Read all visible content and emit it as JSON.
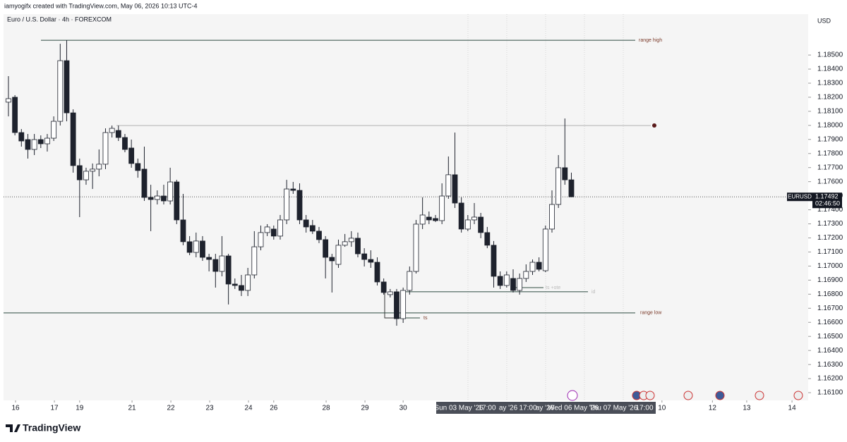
{
  "header": {
    "credit": "iamyogifx created with TradingView.com, May 06, 2026 10:13 UTC-4",
    "logo": "TradingView"
  },
  "chart_data": {
    "type": "candlestick",
    "title": "Euro / U.S. Dollar · 4h · FOREXCOM",
    "currency": "USD",
    "symbol": "EURUSD",
    "last_price": {
      "value": 1.17492,
      "label": "1.17492"
    },
    "countdown": "02:46:50",
    "colors": {
      "up": "#ffffff",
      "down": "#1e222d",
      "border": "#1e222d"
    },
    "open": [
      1.18165,
      1.182,
      1.17949,
      1.17899,
      1.17829,
      1.17899,
      1.17869,
      1.17909,
      1.18029,
      1.1846,
      1.18089,
      1.17714,
      1.17613,
      1.17674,
      1.17689,
      1.17724,
      1.17949,
      1.17964,
      1.17914,
      1.17839,
      1.17729,
      1.17689,
      1.17488,
      1.17473,
      1.17498,
      1.17463,
      1.17598,
      1.17328,
      1.17173,
      1.17097,
      1.17178,
      1.17062,
      1.17047,
      1.16962,
      1.17072,
      1.16872,
      1.16862,
      1.16827,
      1.16937,
      1.17137,
      1.17238,
      1.17263,
      1.17213,
      1.17328,
      1.17548,
      1.17538,
      1.17328,
      1.17288,
      1.17248,
      1.17188,
      1.17062,
      1.17012,
      1.17148,
      1.17173,
      1.17198,
      1.17087,
      1.17047,
      1.17027,
      1.16887,
      1.16797,
      1.16817,
      1.16626,
      1.16827,
      1.16962,
      1.17298,
      1.17348,
      1.17338,
      1.17323,
      1.17498,
      1.17649,
      1.17448,
      1.17263,
      1.17328,
      1.17348,
      1.17238,
      1.17148,
      1.16927,
      1.16862,
      1.16912,
      1.16827,
      1.16912,
      1.16962,
      1.17027,
      1.16967,
      1.17263,
      1.17438,
      1.17699,
      1.17613
    ],
    "high": [
      1.1835,
      1.18215,
      1.17974,
      1.17939,
      1.17939,
      1.17929,
      1.17939,
      1.18064,
      1.1858,
      1.18605,
      1.18114,
      1.17764,
      1.17699,
      1.17729,
      1.17829,
      1.17979,
      1.17999,
      1.17999,
      1.17939,
      1.17899,
      1.17764,
      1.17849,
      1.17578,
      1.17538,
      1.17578,
      1.17699,
      1.17613,
      1.17513,
      1.17213,
      1.17238,
      1.17213,
      1.17087,
      1.17087,
      1.17213,
      1.17087,
      1.16912,
      1.16937,
      1.16987,
      1.17248,
      1.17288,
      1.17298,
      1.17288,
      1.17363,
      1.17613,
      1.17598,
      1.17588,
      1.17363,
      1.17328,
      1.17278,
      1.17213,
      1.17087,
      1.17188,
      1.17228,
      1.17248,
      1.17238,
      1.17127,
      1.17112,
      1.17062,
      1.16912,
      1.16837,
      1.16837,
      1.16847,
      1.16997,
      1.17328,
      1.17488,
      1.17388,
      1.17363,
      1.17588,
      1.17779,
      1.17949,
      1.17488,
      1.17363,
      1.17448,
      1.17378,
      1.17278,
      1.17178,
      1.16962,
      1.16962,
      1.16977,
      1.16947,
      1.17012,
      1.17047,
      1.17062,
      1.17288,
      1.17538,
      1.17789,
      1.18049,
      1.17664
    ],
    "low": [
      1.18064,
      1.17929,
      1.17849,
      1.17764,
      1.17789,
      1.17839,
      1.17814,
      1.17889,
      1.17999,
      1.18029,
      1.17664,
      1.17348,
      1.17578,
      1.17548,
      1.17638,
      1.17689,
      1.17914,
      1.17889,
      1.17809,
      1.17699,
      1.17628,
      1.17463,
      1.17248,
      1.17438,
      1.17438,
      1.17438,
      1.17298,
      1.17148,
      1.17077,
      1.17062,
      1.17037,
      1.16962,
      1.16847,
      1.16927,
      1.16727,
      1.16837,
      1.16787,
      1.16787,
      1.16912,
      1.17112,
      1.17213,
      1.17188,
      1.17188,
      1.17298,
      1.17513,
      1.17298,
      1.17238,
      1.17228,
      1.17163,
      1.16912,
      1.16812,
      1.16987,
      1.17137,
      1.17137,
      1.17062,
      1.16997,
      1.16987,
      1.16862,
      1.16797,
      1.16777,
      1.16576,
      1.16596,
      1.16797,
      1.16947,
      1.17263,
      1.17298,
      1.17313,
      1.17298,
      1.17478,
      1.17413,
      1.17238,
      1.17248,
      1.17298,
      1.17198,
      1.17127,
      1.16847,
      1.16837,
      1.16847,
      1.16812,
      1.16797,
      1.16887,
      1.16937,
      1.16962,
      1.16957,
      1.17238,
      1.17413,
      1.17578,
      1.17513
    ],
    "close": [
      1.1819,
      1.17949,
      1.17889,
      1.17829,
      1.17899,
      1.17869,
      1.17909,
      1.18029,
      1.1846,
      1.18089,
      1.17714,
      1.17613,
      1.17674,
      1.17689,
      1.17724,
      1.17949,
      1.17979,
      1.17914,
      1.17829,
      1.17729,
      1.17679,
      1.17488,
      1.17473,
      1.17498,
      1.17463,
      1.17598,
      1.17328,
      1.17173,
      1.17097,
      1.17178,
      1.17062,
      1.17047,
      1.16962,
      1.17072,
      1.16872,
      1.16862,
      1.16827,
      1.16937,
      1.17137,
      1.17238,
      1.17278,
      1.17213,
      1.17328,
      1.17548,
      1.17538,
      1.17328,
      1.17278,
      1.17248,
      1.17188,
      1.17062,
      1.17037,
      1.17148,
      1.17173,
      1.17198,
      1.17087,
      1.17047,
      1.17027,
      1.16887,
      1.16812,
      1.16817,
      1.16626,
      1.16827,
      1.16962,
      1.17298,
      1.17363,
      1.17328,
      1.17323,
      1.17498,
      1.17649,
      1.17448,
      1.17263,
      1.17328,
      1.17348,
      1.17238,
      1.17148,
      1.16927,
      1.16862,
      1.16937,
      1.16827,
      1.16912,
      1.16962,
      1.17027,
      1.16977,
      1.17263,
      1.17438,
      1.17699,
      1.17613,
      1.17492
    ],
    "levels": [
      {
        "label": "range high",
        "price": 1.18605
      },
      {
        "price": 1.17999
      },
      {
        "label": "ts +ote",
        "price": 1.16847
      },
      {
        "label": "id",
        "price": 1.16817
      },
      {
        "label": "range low",
        "price": 1.16667
      },
      {
        "label": "ts",
        "price": 1.16631
      }
    ],
    "xlim": [
      -0.76,
      123.6
    ],
    "xticks": [
      {
        "value": 1.1,
        "label": "16"
      },
      {
        "value": 7.1,
        "label": "17"
      },
      {
        "value": 11,
        "label": "19"
      },
      {
        "value": 19.1,
        "label": "21"
      },
      {
        "value": 25.1,
        "label": "22"
      },
      {
        "value": 31.1,
        "label": "23"
      },
      {
        "value": 37.1,
        "label": "24"
      },
      {
        "value": 41,
        "label": "26"
      },
      {
        "value": 49.1,
        "label": "28"
      },
      {
        "value": 55.1,
        "label": "29"
      },
      {
        "value": 61,
        "label": "30"
      },
      {
        "value": 101,
        "label": "10"
      },
      {
        "value": 108.8,
        "label": "12"
      },
      {
        "value": 114.1,
        "label": "13"
      },
      {
        "value": 121.1,
        "label": "14"
      }
    ],
    "range_labels": [
      "Sun 03 May '26",
      "17:00",
      "ay '26",
      "17:00",
      "ay '26",
      "Wed 06 May '26",
      "Thu 07 May '26",
      "17:00"
    ],
    "ylim": [
      1.16045,
      1.18791
    ],
    "yticks": [
      {
        "value": 1.185,
        "label": "1.18500"
      },
      {
        "value": 1.184,
        "label": "1.18400"
      },
      {
        "value": 1.183,
        "label": "1.18300"
      },
      {
        "value": 1.182,
        "label": "1.18200"
      },
      {
        "value": 1.181,
        "label": "1.18100"
      },
      {
        "value": 1.18,
        "label": "1.18000"
      },
      {
        "value": 1.179,
        "label": "1.17900"
      },
      {
        "value": 1.178,
        "label": "1.17800"
      },
      {
        "value": 1.177,
        "label": "1.17700"
      },
      {
        "value": 1.176,
        "label": "1.17600"
      },
      {
        "value": 1.175,
        "label": "1.17500"
      },
      {
        "value": 1.174,
        "label": "1.17400"
      },
      {
        "value": 1.173,
        "label": "1.17300"
      },
      {
        "value": 1.172,
        "label": "1.17200"
      },
      {
        "value": 1.171,
        "label": "1.17100"
      },
      {
        "value": 1.17,
        "label": "1.17000"
      },
      {
        "value": 1.169,
        "label": "1.16900"
      },
      {
        "value": 1.168,
        "label": "1.16800"
      },
      {
        "value": 1.167,
        "label": "1.16700"
      },
      {
        "value": 1.166,
        "label": "1.16600"
      },
      {
        "value": 1.165,
        "label": "1.16500"
      },
      {
        "value": 1.164,
        "label": "1.16400"
      },
      {
        "value": 1.163,
        "label": "1.16300"
      },
      {
        "value": 1.162,
        "label": "1.16200"
      },
      {
        "value": 1.161,
        "label": "1.16100"
      }
    ]
  }
}
